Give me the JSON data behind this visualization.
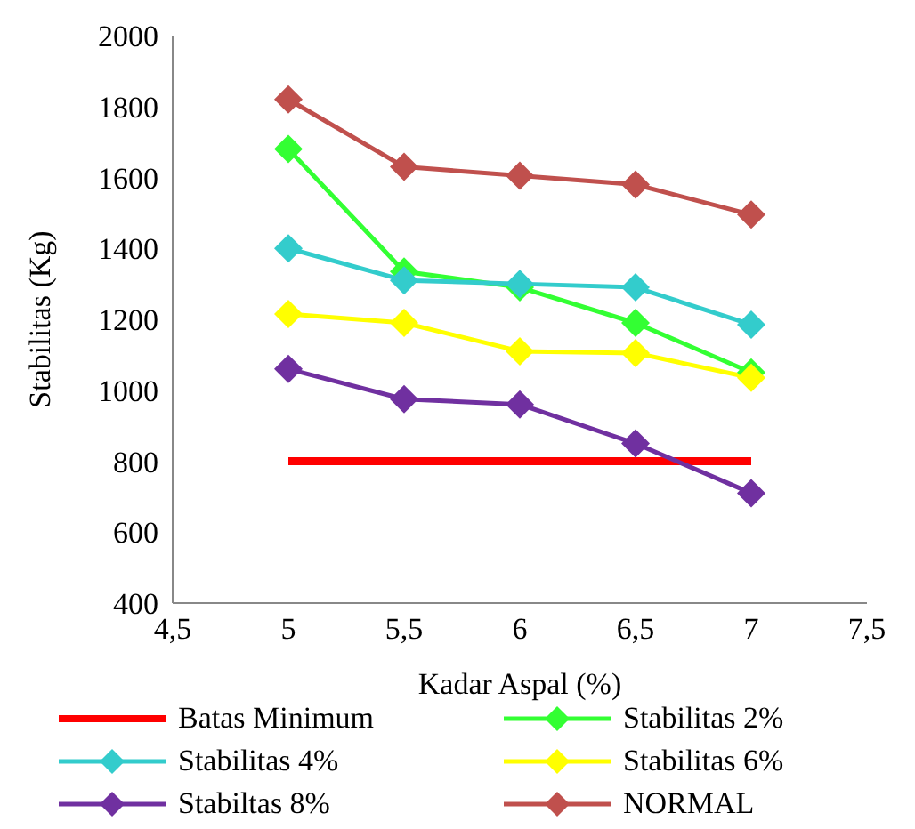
{
  "chart_data": {
    "type": "line",
    "xlabel": "Kadar Aspal (%)",
    "ylabel": "Stabilitas (Kg)",
    "xlim": [
      4.5,
      7.5
    ],
    "xticks": [
      {
        "value": 4.5,
        "label": "4,5"
      },
      5,
      {
        "value": 5.5,
        "label": "5,5"
      },
      6,
      {
        "value": 6.5,
        "label": "6,5"
      },
      7,
      {
        "value": 7.5,
        "label": "7,5"
      }
    ],
    "ylim": [
      400,
      2000
    ],
    "yticks": [
      400,
      600,
      800,
      1000,
      1200,
      1400,
      1600,
      1800,
      2000
    ],
    "grid": false,
    "legend": "bottom",
    "marker": "diamond",
    "line_style": "solid",
    "series": [
      {
        "name": "Batas Minimum",
        "color": "#ff0000",
        "x": [
          5,
          7
        ],
        "values": [
          800,
          800
        ],
        "marker": "none"
      },
      {
        "name": "Stabilitas 2%",
        "color": "#33ff33",
        "x": [
          5,
          5.5,
          6,
          6.5,
          7
        ],
        "values": [
          1680,
          1335,
          1290,
          1190,
          1050
        ]
      },
      {
        "name": "Stabilitas 4%",
        "color": "#33cccc",
        "x": [
          5,
          5.5,
          6,
          6.5,
          7
        ],
        "values": [
          1400,
          1310,
          1300,
          1290,
          1185
        ]
      },
      {
        "name": "Stabilitas 6%",
        "color": "#ffff00",
        "x": [
          5,
          5.5,
          6,
          6.5,
          7
        ],
        "values": [
          1215,
          1190,
          1110,
          1105,
          1035
        ]
      },
      {
        "name": "Stabiltas 8%",
        "color": "#7030a0",
        "x": [
          5,
          5.5,
          6,
          6.5,
          7
        ],
        "values": [
          1060,
          975,
          960,
          850,
          710
        ]
      },
      {
        "name": "NORMAL",
        "color": "#c0504d",
        "x": [
          5,
          5.5,
          6,
          6.5,
          7
        ],
        "values": [
          1820,
          1630,
          1605,
          1580,
          1495
        ]
      }
    ]
  }
}
